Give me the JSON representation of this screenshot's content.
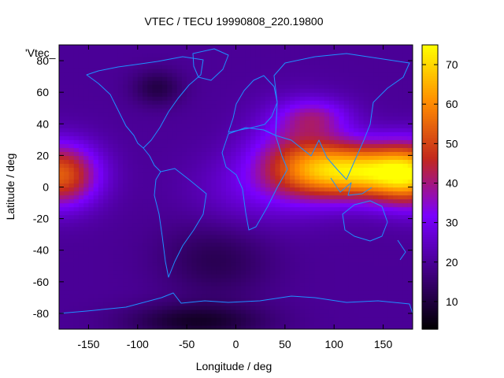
{
  "chart_data": {
    "type": "heatmap",
    "title": "VTEC / TECU 19990808_220.19800",
    "xlabel": "Longitude / deg",
    "ylabel": "Latitude / deg",
    "key_label": "'Vtec_",
    "xlim": [
      -180,
      180
    ],
    "ylim": [
      -90,
      90
    ],
    "x_ticks": [
      -150,
      -100,
      -50,
      0,
      50,
      100,
      150
    ],
    "y_ticks": [
      -80,
      -60,
      -40,
      -20,
      0,
      20,
      40,
      60,
      80
    ],
    "colorbar": {
      "range": [
        3,
        75
      ],
      "ticks": [
        10,
        20,
        30,
        40,
        50,
        60,
        70
      ],
      "palette": [
        "#000000",
        "#400080",
        "#7a00ff",
        "#c2281e",
        "#ff8c00",
        "#ffff00"
      ]
    },
    "grid": false,
    "features": [
      {
        "lon": 120,
        "lat": 10,
        "sigma_lon": 48,
        "sigma_lat": 12,
        "amp": 46
      },
      {
        "lon": 65,
        "lat": 20,
        "sigma_lon": 35,
        "sigma_lat": 20,
        "amp": 18
      },
      {
        "lon": 80,
        "lat": 45,
        "sigma_lon": 25,
        "sigma_lat": 8,
        "amp": 12
      },
      {
        "lon": -180,
        "lat": 8,
        "sigma_lon": 28,
        "sigma_lat": 14,
        "amp": 34
      },
      {
        "lon": 180,
        "lat": 8,
        "sigma_lon": 28,
        "sigma_lat": 14,
        "amp": 34
      },
      {
        "lon": 5,
        "lat": -5,
        "sigma_lon": 40,
        "sigma_lat": 18,
        "amp": 6
      },
      {
        "lon": -40,
        "lat": -85,
        "sigma_lon": 50,
        "sigma_lat": 8,
        "amp": -12
      },
      {
        "lon": -20,
        "lat": -45,
        "sigma_lon": 40,
        "sigma_lat": 18,
        "amp": -8
      },
      {
        "lon": -80,
        "lat": 63,
        "sigma_lon": 18,
        "sigma_lat": 8,
        "amp": -9
      }
    ],
    "baseline": 20
  }
}
